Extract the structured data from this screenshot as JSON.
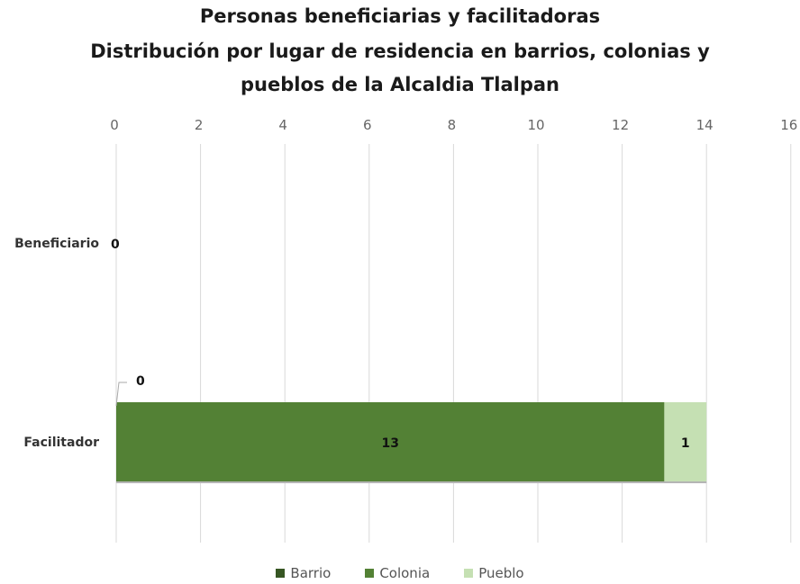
{
  "chart_data": {
    "type": "bar",
    "orientation": "horizontal",
    "stacked": true,
    "title_lines": [
      "Personas beneficiarias y facilitadoras",
      "Distribución por lugar de residencia en barrios, colonias y",
      "pueblos de la Alcaldia Tlalpan"
    ],
    "categories": [
      "Beneficiario",
      "Facilitador"
    ],
    "series": [
      {
        "name": "Barrio",
        "color": "#375623",
        "values": [
          0,
          0
        ]
      },
      {
        "name": "Colonia",
        "color": "#538135",
        "values": [
          0,
          13
        ]
      },
      {
        "name": "Pueblo",
        "color": "#c5e0b3",
        "values": [
          0,
          1
        ]
      }
    ],
    "data_labels": [
      {
        "category": "Beneficiario",
        "text": "0"
      },
      {
        "category": "Facilitador",
        "series": "Barrio",
        "text": "0"
      },
      {
        "category": "Facilitador",
        "series": "Colonia",
        "text": "13"
      },
      {
        "category": "Facilitador",
        "series": "Pueblo",
        "text": "1"
      }
    ],
    "x_axis": {
      "position": "top",
      "min": 0,
      "max": 16,
      "major_unit": 2
    },
    "xticks": [
      "0",
      "2",
      "4",
      "6",
      "8",
      "10",
      "12",
      "14",
      "16"
    ],
    "grid": true,
    "legend_position": "bottom"
  }
}
